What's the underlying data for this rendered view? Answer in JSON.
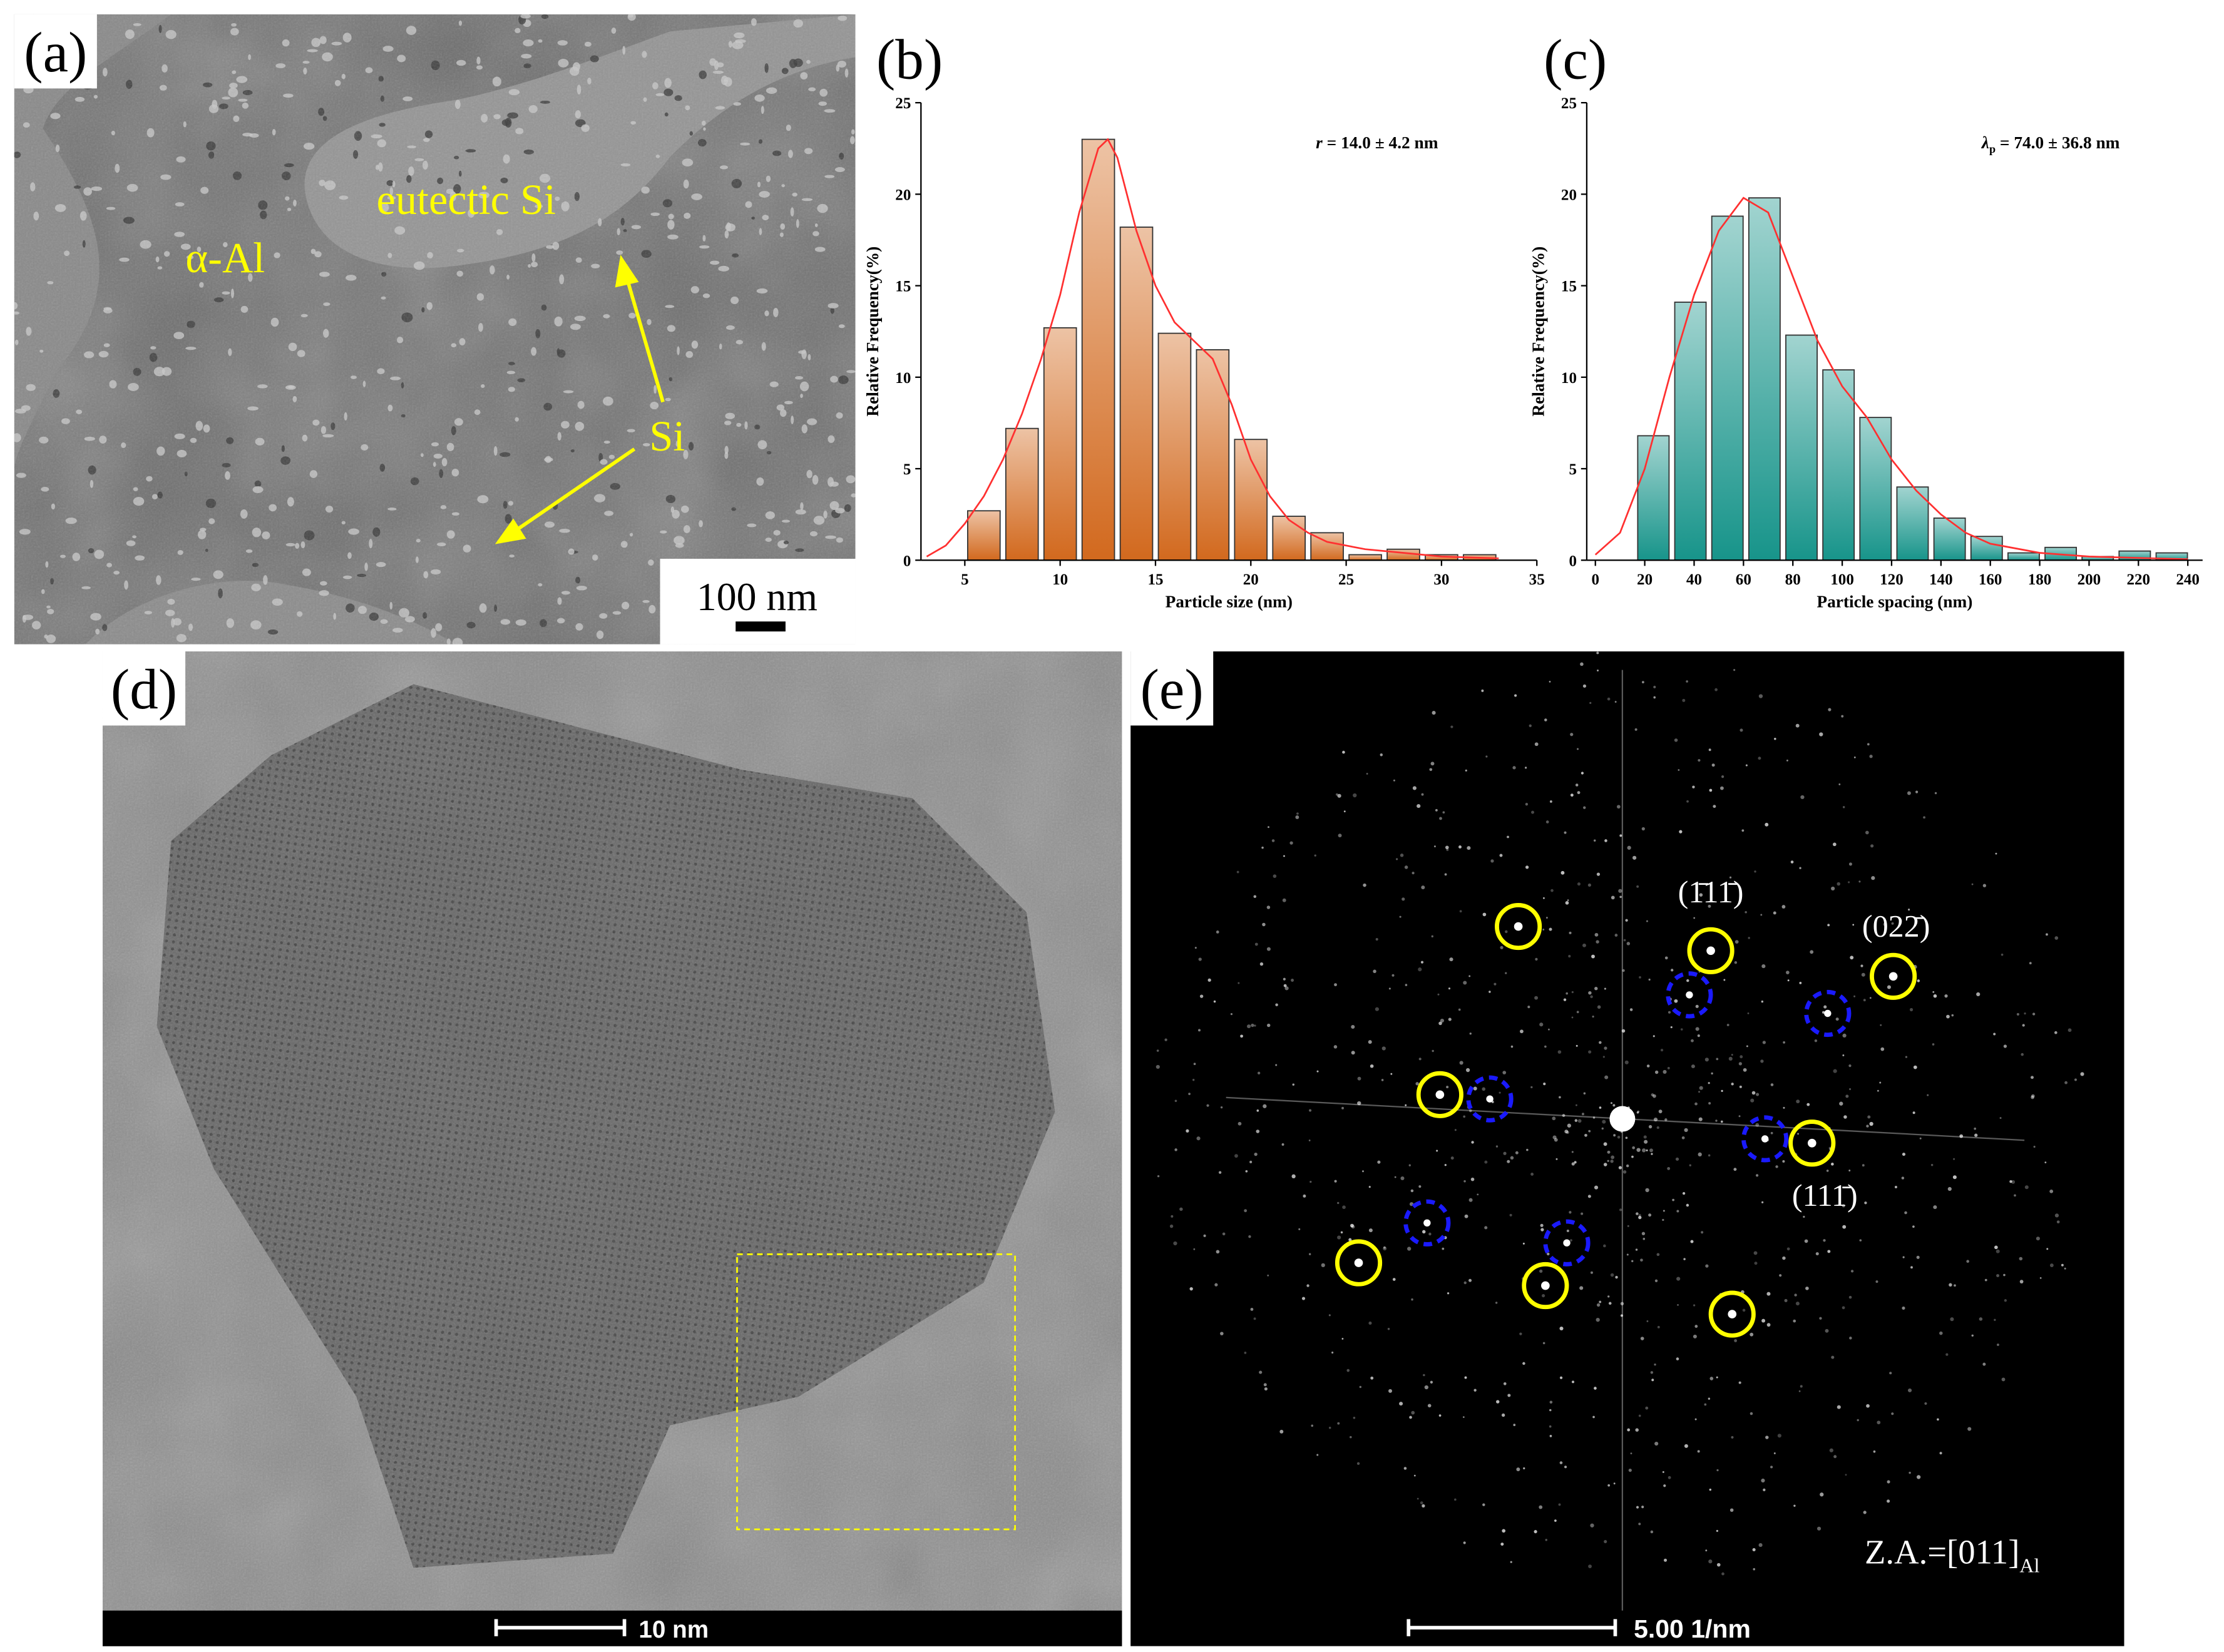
{
  "panels": {
    "a": {
      "label": "(a)",
      "annotations": [
        "eutectic Si",
        "α-Al",
        "Si"
      ],
      "scale_bar": "100 nm"
    },
    "d": {
      "label": "(d)",
      "scale_bar": "10 nm"
    },
    "e": {
      "label": "(e)",
      "spots": [
        "(1̄11̄)",
        "(022̄)",
        "(111̄)"
      ],
      "zone_axis": "Z.A.=[011]",
      "zone_axis_subscript": "Al",
      "scale_bar": "5.00 1/nm"
    }
  },
  "chart_data": [
    {
      "type": "histogram",
      "panel_label": "(b)",
      "xlabel": "Particle size (nm)",
      "ylabel": "Relative Frequency(%)",
      "annotation_symbol": "r",
      "annotation_text": " = 14.0 ± 4.2 nm",
      "bins": [
        5,
        7,
        9,
        11,
        13,
        15,
        17,
        19,
        21,
        23,
        25,
        27,
        29,
        31,
        33
      ],
      "values": [
        2.7,
        7.2,
        12.7,
        23,
        18.2,
        12.4,
        11.5,
        6.6,
        2.4,
        1.5,
        0.3,
        0.6,
        0.3,
        0.3
      ],
      "color": "#d2691e",
      "fit": {
        "color": "#ff3030",
        "x": [
          3,
          4,
          5,
          6,
          7,
          8,
          9,
          10,
          11,
          12,
          12.5,
          13,
          14,
          15,
          16,
          17,
          18,
          19,
          20,
          21,
          22,
          23,
          24,
          26,
          28,
          30,
          33
        ],
        "values": [
          0.2,
          0.8,
          2,
          3.5,
          5.5,
          8,
          11,
          14.5,
          19,
          22.5,
          23,
          22,
          18,
          15,
          13,
          12,
          11,
          8.5,
          5.5,
          3.5,
          2.2,
          1.5,
          1,
          0.6,
          0.4,
          0.2,
          0.1
        ]
      },
      "xlim": [
        2.7,
        35
      ],
      "ylim": [
        0,
        25
      ],
      "xticks": [
        5,
        10,
        15,
        20,
        25,
        30,
        35
      ],
      "yticks": [
        0,
        5,
        10,
        15,
        20,
        25
      ]
    },
    {
      "type": "histogram",
      "panel_label": "(c)",
      "xlabel": "Particle spacing (nm)",
      "ylabel": "Relative Frequency(%)",
      "annotation_symbol": "λ",
      "annotation_subscript": "p",
      "annotation_text": " = 74.0 ± 36.8 nm",
      "bins": [
        16,
        31,
        46,
        61,
        76,
        91,
        106,
        121,
        136,
        151,
        166,
        181,
        196,
        211,
        226,
        241
      ],
      "values": [
        6.8,
        14.1,
        18.8,
        19.8,
        12.3,
        10.4,
        7.8,
        4,
        2.3,
        1.3,
        0.4,
        0.7,
        0.2,
        0.5,
        0.4
      ],
      "color": "#17948a",
      "fit": {
        "color": "#ff3030",
        "x": [
          0,
          10,
          20,
          30,
          40,
          50,
          60,
          70,
          80,
          90,
          100,
          110,
          120,
          130,
          140,
          150,
          160,
          180,
          200,
          240
        ],
        "values": [
          0.3,
          1.5,
          5,
          10,
          14.5,
          18,
          19.8,
          19,
          15.5,
          12,
          9.5,
          7.8,
          5.5,
          3.8,
          2.5,
          1.5,
          0.9,
          0.4,
          0.2,
          0.05
        ]
      },
      "xlim": [
        -3.5,
        246
      ],
      "ylim": [
        0,
        25
      ],
      "xticks": [
        0,
        20,
        40,
        60,
        80,
        100,
        120,
        140,
        160,
        180,
        200,
        220,
        240
      ],
      "yticks": [
        0,
        5,
        10,
        15,
        20,
        25
      ]
    }
  ]
}
